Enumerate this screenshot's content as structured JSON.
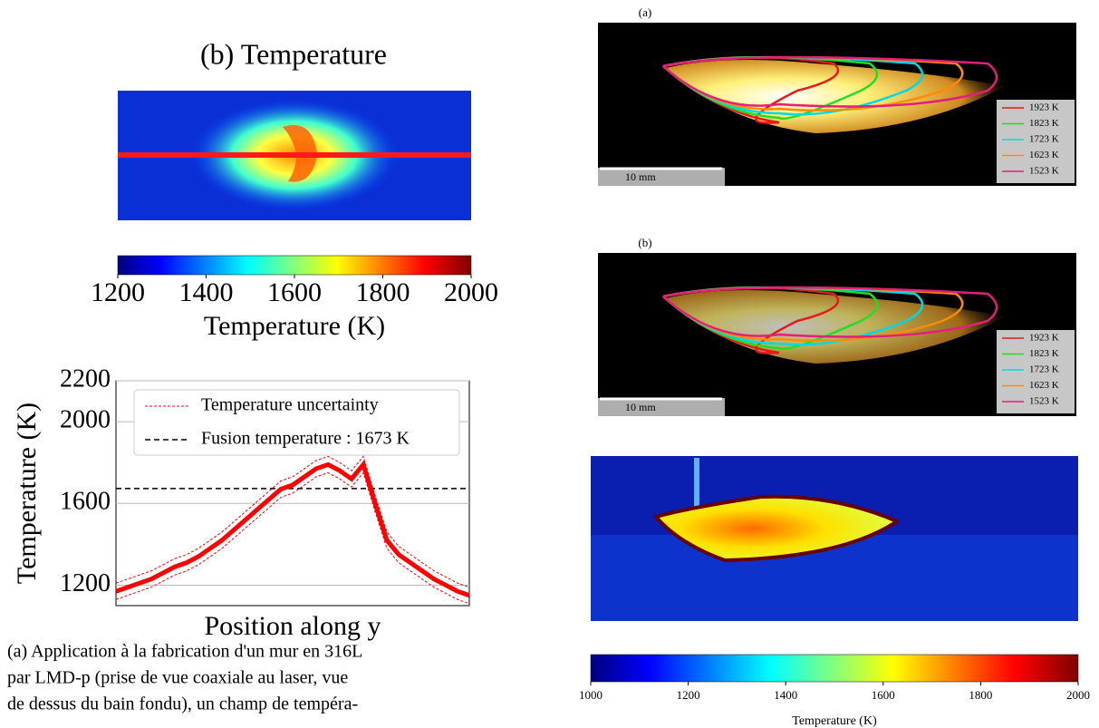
{
  "left_figure": {
    "title": "(b) Temperature",
    "colorbar": {
      "lim": [
        1200,
        2000
      ],
      "ticks": [
        1200,
        1400,
        1600,
        1800,
        2000
      ],
      "label": "Temperature (K)"
    }
  },
  "chart_data": {
    "type": "line",
    "xlabel": "Position along y",
    "ylabel": "Temperature (K)",
    "xlim": [
      0,
      30
    ],
    "ylim": [
      1100,
      2200
    ],
    "yticks": [
      1200,
      1600,
      2000,
      2200
    ],
    "grid": true,
    "x": [
      0,
      1,
      2,
      3,
      4,
      5,
      6,
      7,
      8,
      9,
      10,
      11,
      12,
      13,
      14,
      15,
      16,
      17,
      18,
      19,
      20,
      21,
      22,
      23,
      24,
      25,
      26,
      27,
      28,
      29,
      30
    ],
    "series": [
      {
        "color": "#ff0000",
        "values": [
          1170,
          1190,
          1210,
          1230,
          1260,
          1290,
          1310,
          1340,
          1380,
          1420,
          1470,
          1520,
          1570,
          1620,
          1670,
          1690,
          1730,
          1770,
          1790,
          1760,
          1720,
          1790,
          1600,
          1420,
          1350,
          1310,
          1270,
          1230,
          1200,
          1170,
          1150
        ]
      }
    ],
    "uncertainty": {
      "name": "Temperature uncertainty",
      "color": "#ff0000",
      "error": 40
    },
    "reference": {
      "name": "Fusion temperature : 1673 K",
      "value": 1673,
      "color": "#000000"
    }
  },
  "caption": [
    "(a) Application à la fabrication d'un mur en 316L",
    "par LMD-p (prise de vue coaxiale au laser, vue",
    "de dessus du bain fondu), un champ de tempéra-"
  ],
  "right_figure": {
    "panels": [
      {
        "label": "(a)",
        "scale_bar": "10 mm"
      },
      {
        "label": "(b)",
        "scale_bar": "10 mm"
      }
    ],
    "legend": [
      {
        "name": "1923 K",
        "color": "#e41a1c"
      },
      {
        "name": "1823 K",
        "color": "#22dd22"
      },
      {
        "name": "1723 K",
        "color": "#00d8e8"
      },
      {
        "name": "1623 K",
        "color": "#ff8c00"
      },
      {
        "name": "1523 K",
        "color": "#e0207a"
      }
    ],
    "colorbar": {
      "lim": [
        1000,
        2000
      ],
      "ticks": [
        1000,
        1200,
        1400,
        1600,
        1800,
        2000
      ],
      "label": "Temperature (K)"
    }
  }
}
